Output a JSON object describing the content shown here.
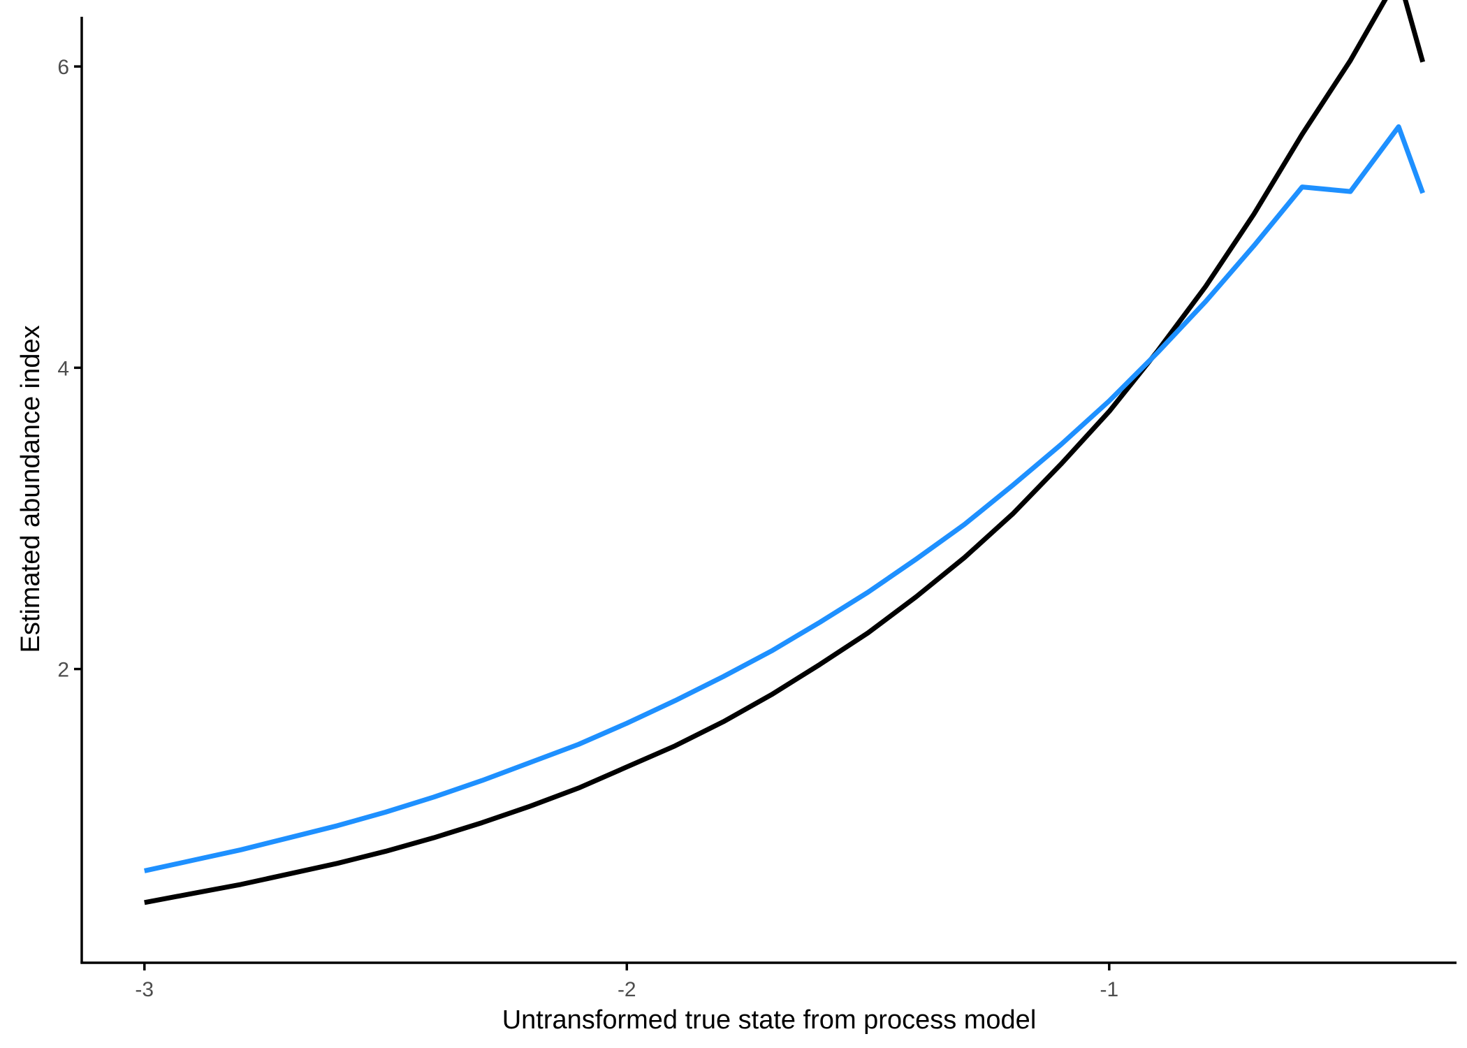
{
  "chart_data": {
    "type": "line",
    "xlabel": "Untransformed true state from process model",
    "ylabel": "Estimated abundance index",
    "xlim": [
      -3.13,
      -0.28
    ],
    "ylim": [
      0.05,
      6.33
    ],
    "x_ticks": [
      -3,
      -2,
      -1
    ],
    "x_tick_labels": [
      "-3",
      "-2",
      "-1"
    ],
    "y_ticks": [
      2,
      4,
      6
    ],
    "y_tick_labels": [
      "2",
      "4",
      "6"
    ],
    "grid": false,
    "legend": "none",
    "series": [
      {
        "color": "#000000",
        "x": [
          -3.0,
          -2.9,
          -2.8,
          -2.7,
          -2.6,
          -2.5,
          -2.4,
          -2.3,
          -2.2,
          -2.1,
          -2.0,
          -1.9,
          -1.8,
          -1.7,
          -1.6,
          -1.5,
          -1.4,
          -1.3,
          -1.2,
          -1.1,
          -1.0,
          -0.9,
          -0.8,
          -0.7,
          -0.6,
          -0.5,
          -0.4,
          -0.35
        ],
        "y": [
          0.45,
          0.51,
          0.57,
          0.64,
          0.71,
          0.79,
          0.88,
          0.98,
          1.09,
          1.21,
          1.35,
          1.49,
          1.65,
          1.83,
          2.03,
          2.24,
          2.48,
          2.74,
          3.03,
          3.36,
          3.71,
          4.11,
          4.54,
          5.02,
          5.55,
          6.04,
          6.6,
          6.03
        ]
      },
      {
        "color": "#1E90FF",
        "x": [
          -3.0,
          -2.9,
          -2.8,
          -2.7,
          -2.6,
          -2.5,
          -2.4,
          -2.3,
          -2.2,
          -2.1,
          -2.0,
          -1.9,
          -1.8,
          -1.7,
          -1.6,
          -1.5,
          -1.4,
          -1.3,
          -1.2,
          -1.1,
          -1.0,
          -0.9,
          -0.8,
          -0.7,
          -0.6,
          -0.5,
          -0.4,
          -0.35
        ],
        "y": [
          0.66,
          0.73,
          0.8,
          0.88,
          0.96,
          1.05,
          1.15,
          1.26,
          1.38,
          1.5,
          1.64,
          1.79,
          1.95,
          2.12,
          2.31,
          2.51,
          2.73,
          2.96,
          3.22,
          3.49,
          3.78,
          4.1,
          4.44,
          4.81,
          5.2,
          5.17,
          5.6,
          5.16
        ]
      }
    ]
  }
}
